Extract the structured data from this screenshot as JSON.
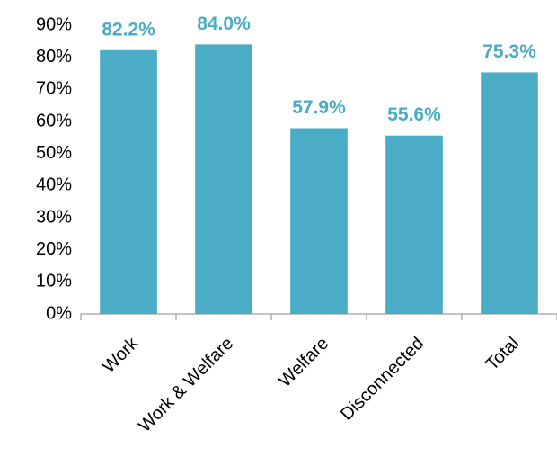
{
  "chart_data": {
    "type": "bar",
    "categories": [
      "Work",
      "Work & Welfare",
      "Welfare",
      "Disconnected",
      "Total"
    ],
    "values": [
      82.2,
      84.0,
      57.9,
      55.6,
      75.3
    ],
    "value_labels": [
      "82.2%",
      "84.0%",
      "57.9%",
      "55.6%",
      "75.3%"
    ],
    "color": "#4bacc6",
    "ylim": [
      0,
      90
    ],
    "yticks": [
      {
        "value": 0,
        "label": "0%"
      },
      {
        "value": 10,
        "label": "10%"
      },
      {
        "value": 20,
        "label": "20%"
      },
      {
        "value": 30,
        "label": "30%"
      },
      {
        "value": 40,
        "label": "40%"
      },
      {
        "value": 50,
        "label": "50%"
      },
      {
        "value": 60,
        "label": "60%"
      },
      {
        "value": 70,
        "label": "70%"
      },
      {
        "value": 80,
        "label": "80%"
      },
      {
        "value": 90,
        "label": "90%"
      }
    ],
    "grid": false
  }
}
